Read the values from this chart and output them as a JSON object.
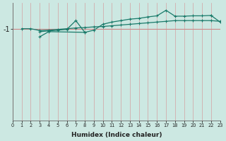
{
  "xlabel": "Humidex (Indice chaleur)",
  "bg_color": "#cce8e2",
  "grid_color": "#d4a0a0",
  "line_color": "#1a7a6a",
  "ref_line_color": "#cc8888",
  "xmin": 0,
  "xmax": 23,
  "ymin": -3.5,
  "ymax": -0.3,
  "ref_y": -1.0,
  "line1_x": [
    1,
    2,
    3,
    4,
    5,
    6,
    7,
    8,
    9,
    10,
    11,
    12,
    13,
    14,
    15,
    16,
    17,
    18,
    19,
    20,
    21,
    22,
    23
  ],
  "line1_y": [
    -1.0,
    -1.0,
    -1.05,
    -1.04,
    -1.02,
    -1.0,
    -0.98,
    -0.97,
    -0.95,
    -0.94,
    -0.92,
    -0.9,
    -0.88,
    -0.86,
    -0.84,
    -0.82,
    -0.8,
    -0.78,
    -0.78,
    -0.78,
    -0.78,
    -0.78,
    -0.8
  ],
  "line2_x": [
    3,
    4,
    5,
    6,
    7,
    8,
    9,
    10,
    11,
    12,
    13,
    14,
    15,
    16,
    17,
    18,
    19,
    20,
    21,
    22
  ],
  "line2_y": [
    -1.08,
    -1.06,
    -1.04,
    -1.02,
    -0.78,
    -1.1,
    -1.04,
    -0.88,
    -0.82,
    -0.78,
    -0.74,
    -0.72,
    -0.68,
    -0.65,
    -0.5,
    -0.66,
    -0.66,
    -0.65,
    -0.65,
    -0.64
  ],
  "line3_x": [
    3,
    4,
    8
  ],
  "line3_y": [
    -1.22,
    -1.08,
    -1.1
  ],
  "line4_x": [
    23
  ],
  "line4_y": [
    -0.82
  ],
  "line2_to_line4": true
}
